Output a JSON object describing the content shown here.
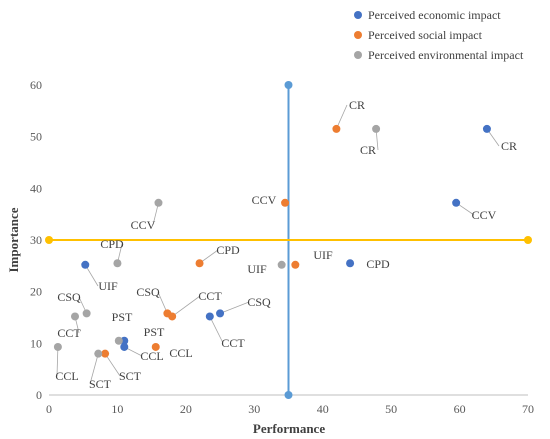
{
  "chart_data": {
    "type": "scatter",
    "xlabel": "Performance",
    "ylabel": "Importance",
    "xlim": [
      0,
      70
    ],
    "ylim": [
      0,
      60
    ],
    "xticks": [
      0,
      10,
      20,
      30,
      40,
      50,
      60,
      70
    ],
    "yticks": [
      0,
      10,
      20,
      30,
      40,
      50,
      60
    ],
    "grid": false,
    "legend_position": "top-right",
    "reference_lines": {
      "vertical_x": 35,
      "horizontal_y": 30,
      "vertical_color": "#5b9bd5",
      "horizontal_color": "#ffc000"
    },
    "series": [
      {
        "name": "Perceived economic impact",
        "color": "#4472c4",
        "points": [
          {
            "label": "CR",
            "x": 64,
            "y": 51.5
          },
          {
            "label": "CCV",
            "x": 59.5,
            "y": 37.2
          },
          {
            "label": "CPD",
            "x": 44,
            "y": 25.5
          },
          {
            "label": "CSQ",
            "x": 25,
            "y": 15.8
          },
          {
            "label": "CCT",
            "x": 23.5,
            "y": 15.2
          },
          {
            "label": "UIF",
            "x": 5.3,
            "y": 25.2
          },
          {
            "label": "PST",
            "x": 11,
            "y": 10.5
          },
          {
            "label": "CCL",
            "x": 11,
            "y": 9.3
          }
        ]
      },
      {
        "name": "Perceived social impact",
        "color": "#ed7d31",
        "points": [
          {
            "label": "CR",
            "x": 42,
            "y": 51.5
          },
          {
            "label": "CCV",
            "x": 34.5,
            "y": 37.2
          },
          {
            "label": "UIF",
            "x": 36,
            "y": 25.2
          },
          {
            "label": "CPD",
            "x": 22,
            "y": 25.5
          },
          {
            "label": "CSQ",
            "x": 17.3,
            "y": 15.8
          },
          {
            "label": "CCT",
            "x": 18,
            "y": 15.2
          },
          {
            "label": "CCL",
            "x": 15.6,
            "y": 9.3
          },
          {
            "label": "SCT",
            "x": 8.2,
            "y": 8
          }
        ]
      },
      {
        "name": "Perceived environmental impact",
        "color": "#a5a5a5",
        "points": [
          {
            "label": "CR",
            "x": 47.8,
            "y": 51.5
          },
          {
            "label": "CCV",
            "x": 16,
            "y": 37.2
          },
          {
            "label": "UIF",
            "x": 34,
            "y": 25.2
          },
          {
            "label": "CPD",
            "x": 10,
            "y": 25.5
          },
          {
            "label": "CSQ",
            "x": 5.5,
            "y": 15.8
          },
          {
            "label": "CCT",
            "x": 3.8,
            "y": 15.2
          },
          {
            "label": "PST",
            "x": 10.2,
            "y": 10.5
          },
          {
            "label": "CCL",
            "x": 1.3,
            "y": 9.3
          },
          {
            "label": "SCT",
            "x": 7.2,
            "y": 8
          }
        ]
      }
    ]
  }
}
